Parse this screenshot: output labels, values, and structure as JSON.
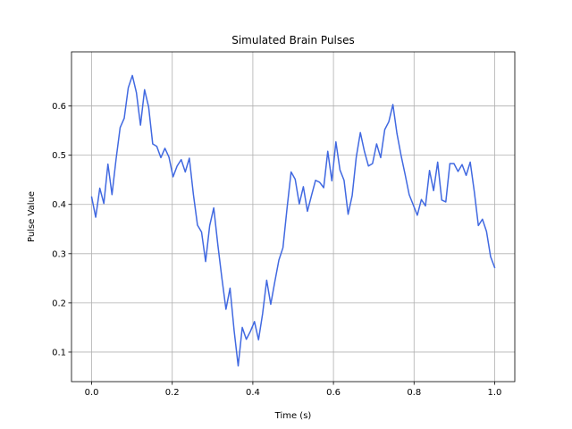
{
  "chart_data": {
    "type": "line",
    "title": "Simulated Brain Pulses",
    "xlabel": "Time (s)",
    "ylabel": "Pulse Value",
    "xlim": [
      -0.05,
      1.05
    ],
    "ylim": [
      0.04,
      0.71
    ],
    "grid": true,
    "legend": "none",
    "x_ticks": [
      0.0,
      0.2,
      0.4,
      0.6,
      0.8,
      1.0
    ],
    "x_tick_labels": [
      "0.0",
      "0.2",
      "0.4",
      "0.6",
      "0.8",
      "1.0"
    ],
    "y_ticks": [
      0.1,
      0.2,
      0.3,
      0.4,
      0.5,
      0.6
    ],
    "y_tick_labels": [
      "0.1",
      "0.2",
      "0.3",
      "0.4",
      "0.5",
      "0.6"
    ],
    "series": [
      {
        "color": "#4169e1",
        "x": [
          0.0,
          0.0101,
          0.0202,
          0.0303,
          0.0404,
          0.0505,
          0.0606,
          0.0707,
          0.0808,
          0.0909,
          0.101,
          0.1111,
          0.1212,
          0.1313,
          0.1414,
          0.1515,
          0.1616,
          0.1717,
          0.1818,
          0.1919,
          0.202,
          0.2121,
          0.2222,
          0.2323,
          0.2424,
          0.2525,
          0.2626,
          0.2727,
          0.2828,
          0.2929,
          0.303,
          0.3131,
          0.3232,
          0.3333,
          0.3434,
          0.3535,
          0.3636,
          0.3737,
          0.3838,
          0.3939,
          0.404,
          0.4141,
          0.4242,
          0.4343,
          0.4444,
          0.4545,
          0.4646,
          0.4747,
          0.4848,
          0.4949,
          0.5051,
          0.5152,
          0.5253,
          0.5354,
          0.5455,
          0.5556,
          0.5657,
          0.5758,
          0.5859,
          0.596,
          0.6061,
          0.6162,
          0.6263,
          0.6364,
          0.6465,
          0.6566,
          0.6667,
          0.6768,
          0.6869,
          0.697,
          0.7071,
          0.7172,
          0.7273,
          0.7374,
          0.7475,
          0.7576,
          0.7677,
          0.7778,
          0.7879,
          0.798,
          0.8081,
          0.8182,
          0.8283,
          0.8384,
          0.8485,
          0.8586,
          0.8687,
          0.8788,
          0.8889,
          0.899,
          0.9091,
          0.9192,
          0.9293,
          0.9394,
          0.9495,
          0.9596,
          0.9697,
          0.9798,
          0.9899,
          1.0
        ],
        "y": [
          0.415,
          0.374,
          0.433,
          0.402,
          0.482,
          0.42,
          0.492,
          0.556,
          0.575,
          0.637,
          0.662,
          0.627,
          0.561,
          0.633,
          0.598,
          0.523,
          0.518,
          0.495,
          0.514,
          0.496,
          0.456,
          0.478,
          0.491,
          0.466,
          0.494,
          0.42,
          0.358,
          0.344,
          0.284,
          0.357,
          0.393,
          0.318,
          0.25,
          0.187,
          0.23,
          0.144,
          0.072,
          0.15,
          0.126,
          0.142,
          0.162,
          0.125,
          0.178,
          0.246,
          0.197,
          0.243,
          0.287,
          0.312,
          0.392,
          0.466,
          0.451,
          0.401,
          0.436,
          0.386,
          0.418,
          0.449,
          0.445,
          0.434,
          0.508,
          0.448,
          0.527,
          0.47,
          0.449,
          0.38,
          0.418,
          0.496,
          0.546,
          0.508,
          0.478,
          0.483,
          0.523,
          0.495,
          0.552,
          0.568,
          0.603,
          0.544,
          0.5,
          0.461,
          0.42,
          0.399,
          0.378,
          0.41,
          0.397,
          0.469,
          0.428,
          0.486,
          0.409,
          0.405,
          0.483,
          0.483,
          0.467,
          0.481,
          0.459,
          0.486,
          0.426,
          0.357,
          0.37,
          0.345,
          0.294,
          0.272
        ]
      }
    ]
  }
}
